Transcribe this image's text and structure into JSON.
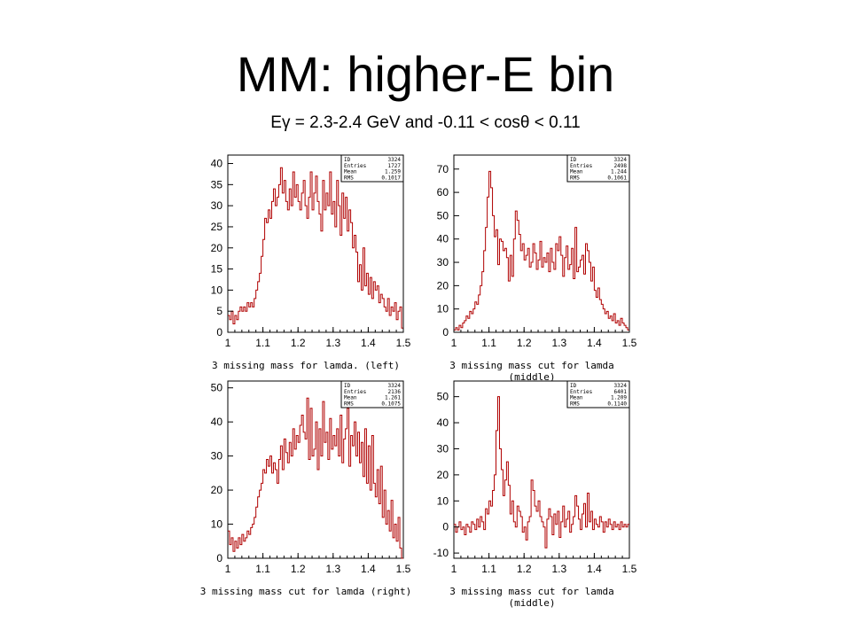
{
  "slide": {
    "title": "MM: higher-E bin",
    "subtitle": "Eγ = 2.3-2.4 GeV and -0.11 < cosθ < 0.11"
  },
  "colors": {
    "histogram": "#b00000",
    "axes": "#000000"
  },
  "chart_data": [
    {
      "type": "bar",
      "title": "3 missing mass for lamda. (left)",
      "xlabel": "",
      "ylabel": "",
      "xlim": [
        1,
        1.5
      ],
      "ylim": [
        0,
        42
      ],
      "xticks": [
        1,
        1.1,
        1.2,
        1.3,
        1.4,
        1.5
      ],
      "yticks": [
        0,
        5,
        10,
        15,
        20,
        25,
        30,
        35,
        40
      ],
      "stats": {
        "ID": "3324",
        "Entries": "1727",
        "Mean": "1.259",
        "RMS": "0.1017"
      },
      "bin_width": 0.005,
      "values": [
        4,
        3,
        5,
        2,
        4,
        3,
        5,
        6,
        5,
        6,
        5,
        7,
        6,
        7,
        6,
        8,
        10,
        12,
        14,
        18,
        22,
        27,
        26,
        29,
        27,
        31,
        34,
        30,
        32,
        35,
        39,
        33,
        36,
        31,
        29,
        34,
        30,
        38,
        32,
        35,
        31,
        29,
        33,
        36,
        30,
        27,
        32,
        38,
        29,
        33,
        37,
        31,
        28,
        24,
        36,
        29,
        33,
        30,
        38,
        28,
        31,
        25,
        36,
        30,
        23,
        33,
        27,
        32,
        24,
        29,
        26,
        20,
        23,
        19,
        12,
        16,
        10,
        20,
        11,
        14,
        9,
        13,
        8,
        12,
        10,
        11,
        7,
        9,
        8,
        6,
        5,
        8,
        4,
        6,
        5,
        7,
        3,
        5,
        6,
        1
      ]
    },
    {
      "type": "bar",
      "title": "3 missing mass cut for lamda (middle)",
      "xlabel": "",
      "ylabel": "",
      "xlim": [
        1,
        1.5
      ],
      "ylim": [
        0,
        76
      ],
      "xticks": [
        1,
        1.1,
        1.2,
        1.3,
        1.4,
        1.5
      ],
      "yticks": [
        0,
        10,
        20,
        30,
        40,
        50,
        60,
        70
      ],
      "stats": {
        "ID": "3324",
        "Entries": "2498",
        "Mean": "1.244",
        "RMS": "0.1061"
      },
      "bin_width": 0.005,
      "values": [
        1,
        2,
        1,
        3,
        2,
        4,
        5,
        7,
        6,
        9,
        8,
        10,
        13,
        12,
        16,
        20,
        26,
        35,
        45,
        58,
        69,
        62,
        50,
        41,
        44,
        29,
        40,
        39,
        35,
        36,
        32,
        22,
        33,
        24,
        40,
        52,
        48,
        42,
        35,
        38,
        31,
        33,
        36,
        28,
        30,
        38,
        34,
        27,
        31,
        39,
        28,
        32,
        30,
        34,
        26,
        36,
        30,
        27,
        38,
        35,
        41,
        33,
        24,
        32,
        37,
        27,
        29,
        36,
        23,
        45,
        26,
        28,
        31,
        33,
        25,
        38,
        35,
        30,
        22,
        28,
        18,
        15,
        19,
        14,
        12,
        10,
        8,
        9,
        6,
        7,
        5,
        8,
        4,
        5,
        3,
        6,
        4,
        3,
        2,
        1
      ]
    },
    {
      "type": "bar",
      "title": "3 missing mass cut for lamda (right)",
      "xlabel": "",
      "ylabel": "",
      "xlim": [
        1,
        1.5
      ],
      "ylim": [
        0,
        52
      ],
      "xticks": [
        1,
        1.1,
        1.2,
        1.3,
        1.4,
        1.5
      ],
      "yticks": [
        0,
        10,
        20,
        30,
        40,
        50
      ],
      "stats": {
        "ID": "3324",
        "Entries": "2136",
        "Mean": "1.261",
        "RMS": "0.1075"
      },
      "bin_width": 0.005,
      "values": [
        8,
        4,
        6,
        2,
        5,
        3,
        6,
        4,
        7,
        5,
        6,
        8,
        7,
        9,
        10,
        12,
        15,
        18,
        20,
        22,
        26,
        25,
        29,
        27,
        30,
        25,
        28,
        26,
        22,
        29,
        33,
        26,
        35,
        31,
        28,
        34,
        30,
        38,
        32,
        36,
        34,
        39,
        42,
        37,
        35,
        47,
        29,
        44,
        30,
        32,
        40,
        26,
        38,
        30,
        46,
        34,
        37,
        29,
        41,
        32,
        36,
        33,
        38,
        30,
        42,
        28,
        35,
        38,
        44,
        27,
        36,
        33,
        40,
        30,
        37,
        28,
        34,
        24,
        38,
        22,
        33,
        20,
        36,
        22,
        18,
        26,
        16,
        27,
        12,
        20,
        10,
        14,
        8,
        17,
        6,
        10,
        5,
        12,
        3,
        0
      ]
    },
    {
      "type": "bar",
      "title": "3 missing mass cut for lamda (middle)",
      "xlabel": "",
      "ylabel": "",
      "xlim": [
        1,
        1.5
      ],
      "ylim": [
        -12,
        56
      ],
      "xticks": [
        1,
        1.1,
        1.2,
        1.3,
        1.4,
        1.5
      ],
      "yticks": [
        -10,
        0,
        10,
        20,
        30,
        40,
        50
      ],
      "stats": {
        "ID": "3324",
        "Entries": "6401",
        "Mean": "1.209",
        "RMS": "0.1140"
      },
      "bin_width": 0.005,
      "values": [
        1,
        -2,
        0,
        2,
        -1,
        0,
        -3,
        1,
        0,
        -2,
        2,
        1,
        -1,
        3,
        0,
        4,
        2,
        -1,
        7,
        5,
        10,
        8,
        14,
        20,
        37,
        50,
        30,
        22,
        12,
        18,
        25,
        16,
        5,
        10,
        2,
        0,
        8,
        6,
        4,
        -2,
        0,
        -5,
        2,
        4,
        18,
        14,
        8,
        6,
        10,
        4,
        2,
        0,
        -8,
        3,
        7,
        4,
        -3,
        5,
        1,
        6,
        -4,
        2,
        8,
        0,
        3,
        6,
        -2,
        1,
        4,
        12,
        8,
        3,
        -1,
        5,
        9,
        0,
        13,
        2,
        6,
        -1,
        3,
        1,
        0,
        4,
        2,
        -2,
        2,
        0,
        3,
        1,
        -1,
        2,
        0,
        1,
        -1,
        2,
        0,
        1,
        0,
        1
      ]
    }
  ]
}
